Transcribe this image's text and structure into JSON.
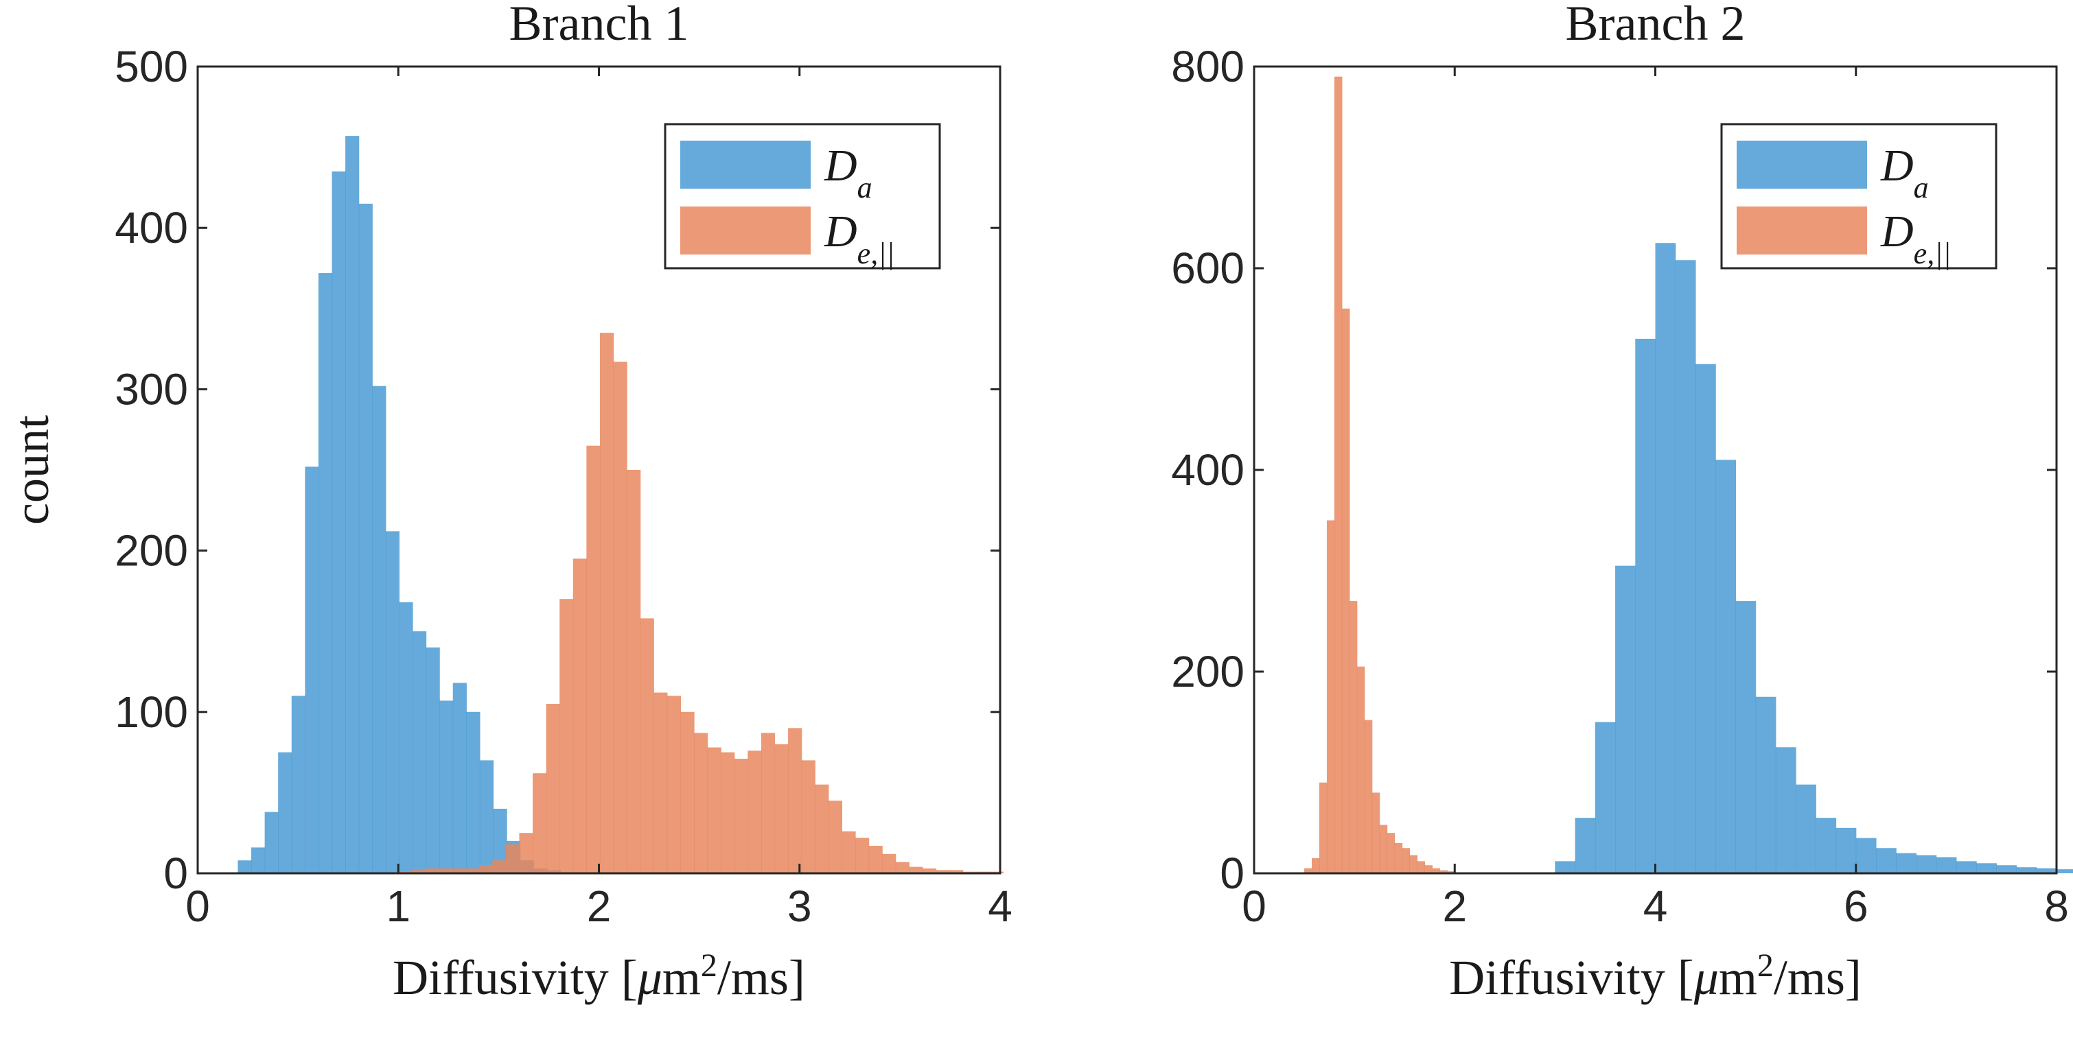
{
  "chart_data": [
    {
      "type": "bar",
      "subtype": "histogram",
      "title": "Branch 1",
      "xlabel": "Diffusivity [μm²/ms]",
      "ylabel": "count",
      "xlim": [
        0,
        4
      ],
      "ylim": [
        0,
        500
      ],
      "xticks": [
        0,
        1,
        2,
        3,
        4
      ],
      "yticks": [
        0,
        100,
        200,
        300,
        400,
        500
      ],
      "grid": false,
      "legend_position": "top-right",
      "bin_width": 0.067,
      "series": [
        {
          "name": "D_a",
          "legend_main": "D",
          "legend_sub": "a",
          "color": "#4a9bd3",
          "bin_start": 0.2,
          "values": [
            8,
            16,
            38,
            75,
            110,
            252,
            372,
            435,
            457,
            415,
            302,
            212,
            168,
            150,
            140,
            107,
            118,
            100,
            70,
            40,
            20,
            8,
            3,
            2
          ]
        },
        {
          "name": "D_{e,||}",
          "legend_main": "D",
          "legend_sub": "e,||",
          "color": "#e8875e",
          "bin_start": 1.0,
          "values": [
            1,
            2,
            3,
            3,
            3,
            3,
            5,
            8,
            18,
            25,
            62,
            105,
            170,
            195,
            265,
            335,
            317,
            250,
            158,
            112,
            110,
            100,
            87,
            78,
            75,
            71,
            76,
            87,
            80,
            90,
            70,
            55,
            45,
            26,
            22,
            17,
            12,
            7,
            4,
            3,
            2,
            2,
            1,
            1,
            1
          ]
        }
      ]
    },
    {
      "type": "bar",
      "subtype": "histogram",
      "title": "Branch 2",
      "xlabel": "Diffusivity [μm²/ms]",
      "ylabel": "",
      "xlim": [
        0,
        8
      ],
      "ylim": [
        0,
        800
      ],
      "xticks": [
        0,
        2,
        4,
        6,
        8
      ],
      "yticks": [
        0,
        200,
        400,
        600,
        800
      ],
      "grid": false,
      "legend_position": "top-right",
      "series": [
        {
          "name": "D_a",
          "legend_main": "D",
          "legend_sub": "a",
          "color": "#4a9bd3",
          "bin_start": 3.0,
          "bin_width": 0.2,
          "values": [
            12,
            55,
            150,
            305,
            530,
            625,
            608,
            505,
            410,
            270,
            175,
            125,
            88,
            55,
            45,
            35,
            25,
            20,
            18,
            16,
            12,
            10,
            8,
            6,
            5,
            4
          ]
        },
        {
          "name": "D_{e,||}",
          "legend_main": "D",
          "legend_sub": "e,||",
          "color": "#e8875e",
          "bin_start": 0.5,
          "bin_width": 0.075,
          "values": [
            5,
            15,
            90,
            350,
            790,
            560,
            270,
            205,
            152,
            80,
            48,
            40,
            30,
            25,
            18,
            12,
            8,
            5,
            3,
            2
          ]
        }
      ]
    }
  ]
}
